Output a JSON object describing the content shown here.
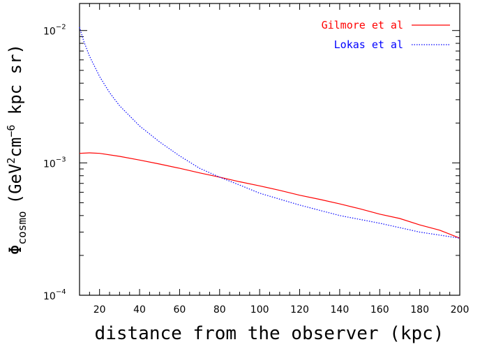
{
  "chart_data": {
    "type": "line",
    "xlabel": "distance from the observer (kpc)",
    "ylabel": "Φ_cosmo (GeV²cm⁻⁶ kpc sr)",
    "ylabel_parts": {
      "phi": "Φ",
      "sub": "cosmo",
      "open": "(GeV",
      "sup2": "2",
      "cm": "cm",
      "sup6": "−6",
      "rest": " kpc sr)"
    },
    "xlim": [
      10,
      200
    ],
    "ylim": [
      0.0001,
      0.016
    ],
    "yscale": "log",
    "x_ticks": [
      20,
      40,
      60,
      80,
      100,
      120,
      140,
      160,
      180,
      200
    ],
    "y_ticks": [
      {
        "value": 0.0001,
        "base": "10",
        "exp": "−4"
      },
      {
        "value": 0.001,
        "base": "10",
        "exp": "−3"
      },
      {
        "value": 0.01,
        "base": "10",
        "exp": "−2"
      }
    ],
    "legend_position": "top-right",
    "series": [
      {
        "name": "Gilmore et al",
        "color": "#ff0000",
        "style": "solid",
        "x": [
          10,
          15,
          20,
          30,
          40,
          50,
          60,
          70,
          80,
          90,
          100,
          110,
          120,
          130,
          140,
          150,
          160,
          170,
          180,
          190,
          200
        ],
        "y": [
          0.00118,
          0.00119,
          0.00118,
          0.00112,
          0.00105,
          0.00098,
          0.00091,
          0.00084,
          0.00078,
          0.00072,
          0.00067,
          0.00062,
          0.00057,
          0.00053,
          0.00049,
          0.00045,
          0.00041,
          0.00038,
          0.00034,
          0.00031,
          0.00027
        ]
      },
      {
        "name": "Lokas et al",
        "color": "#0000ff",
        "style": "dotted",
        "x": [
          10,
          12,
          15,
          20,
          25,
          30,
          40,
          50,
          60,
          70,
          80,
          90,
          100,
          120,
          140,
          160,
          180,
          200
        ],
        "y": [
          0.0106,
          0.0084,
          0.0064,
          0.0045,
          0.0034,
          0.0027,
          0.0019,
          0.00144,
          0.00113,
          0.00091,
          0.00078,
          0.00068,
          0.00059,
          0.00048,
          0.0004,
          0.00035,
          0.0003,
          0.00027
        ]
      }
    ]
  }
}
